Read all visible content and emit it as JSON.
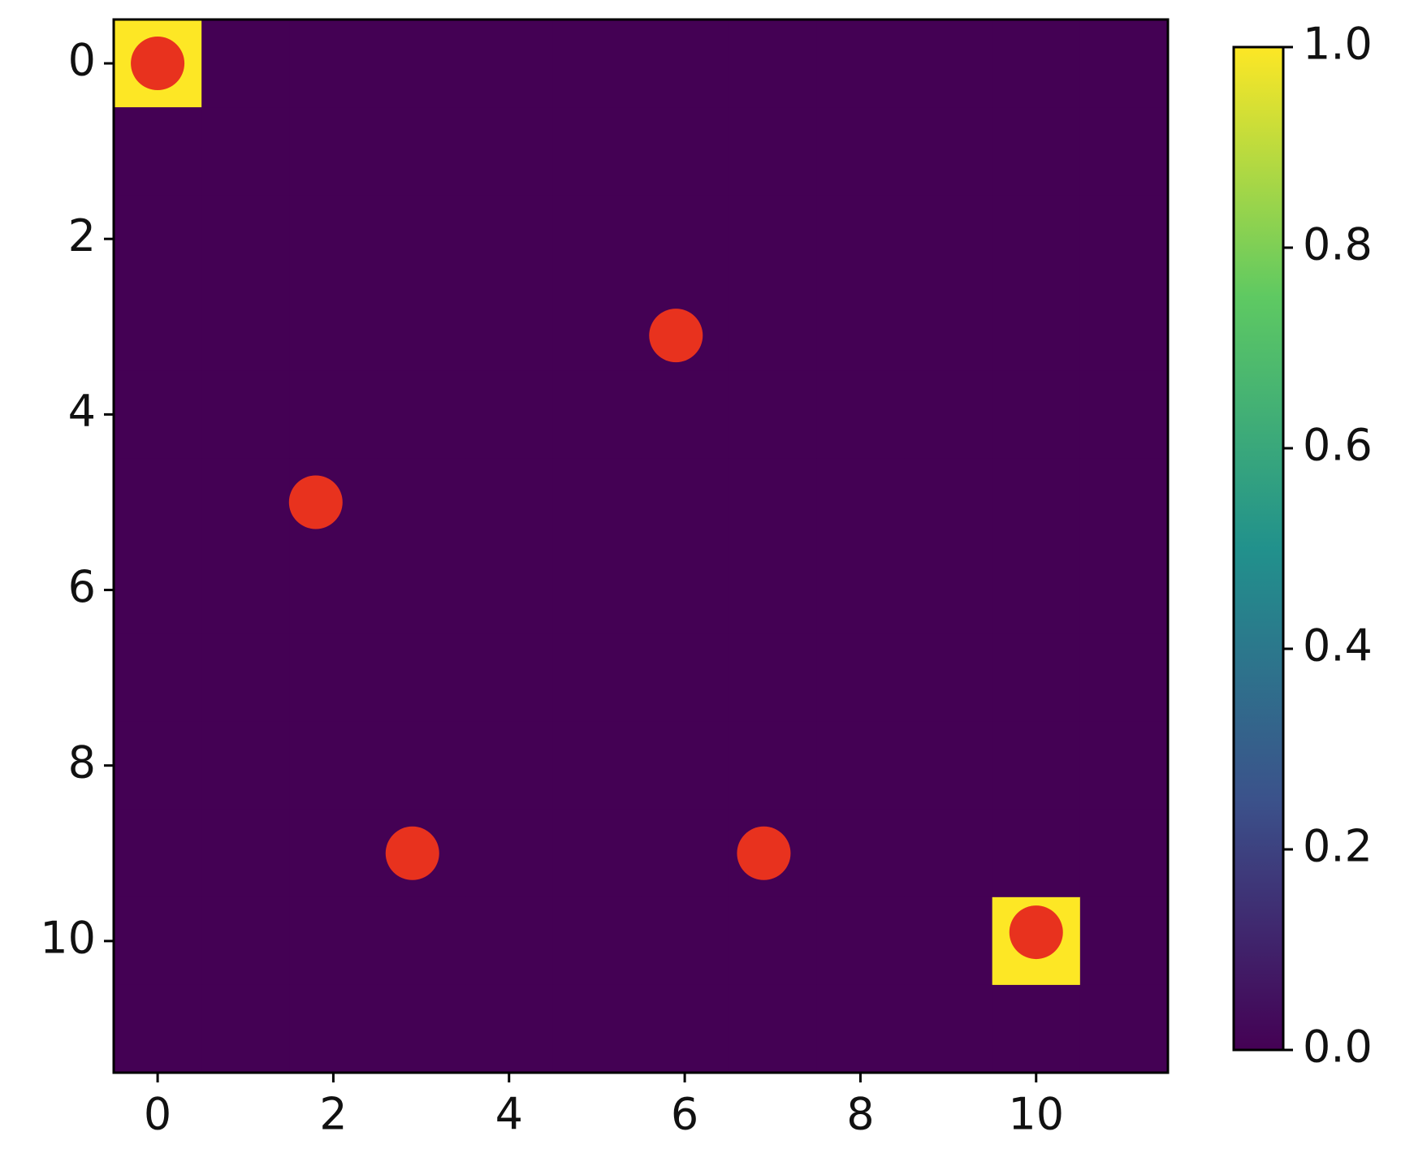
{
  "chart_data": {
    "type": "heatmap",
    "colormap": "viridis",
    "z": [
      [
        1,
        0,
        0,
        0,
        0,
        0,
        0,
        0,
        0,
        0,
        0,
        0
      ],
      [
        0,
        0,
        0,
        0,
        0,
        0,
        0,
        0,
        0,
        0,
        0,
        0
      ],
      [
        0,
        0,
        0,
        0,
        0,
        0,
        0,
        0,
        0,
        0,
        0,
        0
      ],
      [
        0,
        0,
        0,
        0,
        0,
        0,
        0,
        0,
        0,
        0,
        0,
        0
      ],
      [
        0,
        0,
        0,
        0,
        0,
        0,
        0,
        0,
        0,
        0,
        0,
        0
      ],
      [
        0,
        0,
        0,
        0,
        0,
        0,
        0,
        0,
        0,
        0,
        0,
        0
      ],
      [
        0,
        0,
        0,
        0,
        0,
        0,
        0,
        0,
        0,
        0,
        0,
        0
      ],
      [
        0,
        0,
        0,
        0,
        0,
        0,
        0,
        0,
        0,
        0,
        0,
        0
      ],
      [
        0,
        0,
        0,
        0,
        0,
        0,
        0,
        0,
        0,
        0,
        0,
        0
      ],
      [
        0,
        0,
        0,
        0,
        0,
        0,
        0,
        0,
        0,
        0,
        0,
        0
      ],
      [
        0,
        0,
        0,
        0,
        0,
        0,
        0,
        0,
        0,
        0,
        1,
        0
      ],
      [
        0,
        0,
        0,
        0,
        0,
        0,
        0,
        0,
        0,
        0,
        0,
        0
      ]
    ],
    "xlim": [
      -0.5,
      11.5
    ],
    "ylim": [
      -0.5,
      11.5
    ],
    "y_inverted": true,
    "xticks": [
      0,
      2,
      4,
      6,
      8,
      10
    ],
    "yticks": [
      0,
      2,
      4,
      6,
      8,
      10
    ],
    "scatter": {
      "color": "#e8321e",
      "x": [
        0,
        5.9,
        1.8,
        2.9,
        6.9,
        10
      ],
      "y": [
        0,
        3.1,
        5,
        9,
        9,
        9.9
      ]
    },
    "colorbar": {
      "lim": [
        0,
        1
      ],
      "ticks": [
        {
          "value": 0,
          "label": "0.0"
        },
        {
          "value": 0.2,
          "label": "0.2"
        },
        {
          "value": 0.4,
          "label": "0.4"
        },
        {
          "value": 0.6,
          "label": "0.6"
        },
        {
          "value": 0.8,
          "label": "0.8"
        },
        {
          "value": 1,
          "label": "1.0"
        }
      ]
    }
  }
}
